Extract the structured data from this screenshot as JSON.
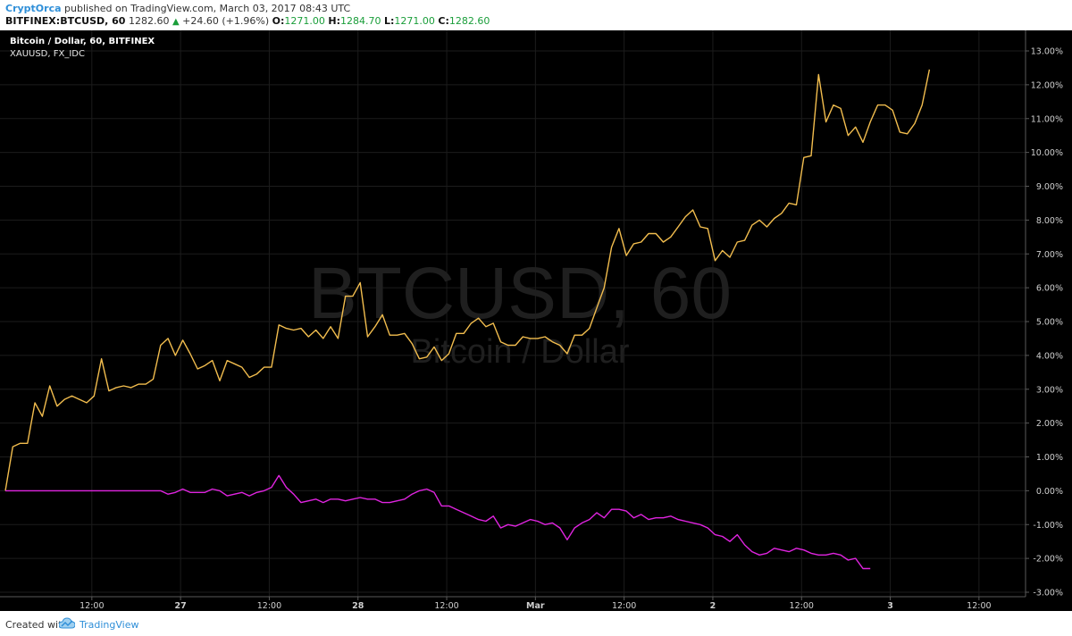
{
  "header": {
    "author": "CryptOrca",
    "published_text": "published on TradingView.com, March 03, 2017 08:43 UTC",
    "symbol": "BITFINEX:BTCUSD, 60",
    "last": "1282.60",
    "change": "+24.60 (+1.96%)",
    "open_label": "O:",
    "open": "1271.00",
    "high_label": "H:",
    "high": "1284.70",
    "low_label": "L:",
    "low": "1271.00",
    "close_label": "C:",
    "close": "1282.60"
  },
  "legend": {
    "main_series": "Bitcoin / Dollar, 60, BITFINEX",
    "compare_series": "XAUUSD, FX_IDC"
  },
  "watermark": {
    "symbol": "BTCUSD, 60",
    "description": "Bitcoin / Dollar"
  },
  "footer": {
    "created_with": "Created with",
    "brand": "TradingView"
  },
  "colors": {
    "background": "#000000",
    "btc_line": "#f2bd4e",
    "xau_line": "#e024e0",
    "axis_text": "#d0d0d0",
    "brand": "#2f8fd8"
  },
  "chart_data": {
    "type": "line",
    "yunit": "%",
    "ylim": [
      -3.2,
      13.3
    ],
    "y_ticks": [
      13,
      12,
      11,
      10,
      9,
      8,
      7,
      6,
      5,
      4,
      3,
      2,
      1,
      0,
      -1,
      -2,
      -3
    ],
    "y_tick_labels": [
      "13.00%",
      "12.00%",
      "11.00%",
      "10.00%",
      "9.00%",
      "8.00%",
      "7.00%",
      "6.00%",
      "5.00%",
      "4.00%",
      "3.00%",
      "2.00%",
      "1.00%",
      "0.00%",
      "-1.00%",
      "-2.00%",
      "-3.00%"
    ],
    "x_ticks": [
      {
        "label": "12:00",
        "bar": 19.5
      },
      {
        "label": "27",
        "bar": 39.5
      },
      {
        "label": "12:00",
        "bar": 59.5
      },
      {
        "label": "28",
        "bar": 79.5
      },
      {
        "label": "12:00",
        "bar": 99.5
      },
      {
        "label": "Mar",
        "bar": 119.5
      },
      {
        "label": "12:00",
        "bar": 139.5
      },
      {
        "label": "2",
        "bar": 159.5
      },
      {
        "label": "12:00",
        "bar": 179.5
      },
      {
        "label": "3",
        "bar": 199.5
      },
      {
        "label": "12:00",
        "bar": 219.5
      }
    ],
    "x_range": [
      0,
      230
    ],
    "grid": true,
    "series": [
      {
        "values": [
          0.0,
          1.3,
          1.4,
          1.4,
          2.6,
          2.2,
          3.1,
          2.5,
          2.7,
          2.8,
          2.7,
          2.6,
          2.8,
          3.9,
          2.95,
          3.05,
          3.1,
          3.05,
          3.15,
          3.15,
          3.3,
          4.3,
          4.5,
          4.0,
          4.45,
          4.05,
          3.6,
          3.7,
          3.85,
          3.25,
          3.85,
          3.75,
          3.65,
          3.35,
          3.45,
          3.65,
          3.65,
          4.9,
          4.8,
          4.75,
          4.8,
          4.55,
          4.75,
          4.5,
          4.85,
          4.5,
          5.75,
          5.75,
          6.15,
          4.55,
          4.85,
          5.2,
          4.6,
          4.6,
          4.65,
          4.35,
          3.9,
          3.95,
          4.25,
          3.85,
          4.05,
          4.65,
          4.65,
          4.95,
          5.1,
          4.85,
          4.95,
          4.4,
          4.3,
          4.3,
          4.55,
          4.5,
          4.5,
          4.55,
          4.4,
          4.3,
          4.05,
          4.6,
          4.6,
          4.8,
          5.4,
          6.0,
          7.2,
          7.75,
          6.95,
          7.3,
          7.35,
          7.6,
          7.6,
          7.35,
          7.5,
          7.8,
          8.1,
          8.3,
          7.8,
          7.75,
          6.8,
          7.1,
          6.9,
          7.35,
          7.4,
          7.85,
          8.0,
          7.8,
          8.05,
          8.2,
          8.5,
          8.45,
          9.85,
          9.9,
          12.3,
          10.9,
          11.4,
          11.3,
          10.5,
          10.75,
          10.3,
          10.9,
          11.4,
          11.4,
          11.25,
          10.6,
          10.55,
          10.85,
          11.4,
          12.45
        ],
        "step": 1.6667
      },
      {
        "values": [
          0.0,
          0.0,
          0.0,
          0.0,
          0.0,
          0.0,
          0.0,
          0.0,
          0.0,
          0.0,
          0.0,
          0.0,
          0.0,
          0.0,
          0.0,
          0.0,
          0.0,
          0.0,
          0.0,
          0.0,
          0.0,
          0.0,
          -0.1,
          -0.05,
          0.05,
          -0.05,
          -0.05,
          -0.05,
          0.05,
          0.0,
          -0.15,
          -0.1,
          -0.05,
          -0.15,
          -0.05,
          0.0,
          0.1,
          0.45,
          0.1,
          -0.1,
          -0.35,
          -0.3,
          -0.25,
          -0.35,
          -0.25,
          -0.25,
          -0.3,
          -0.25,
          -0.2,
          -0.25,
          -0.25,
          -0.35,
          -0.35,
          -0.3,
          -0.25,
          -0.1,
          0.0,
          0.05,
          -0.05,
          -0.45,
          -0.45,
          -0.55,
          -0.65,
          -0.75,
          -0.85,
          -0.9,
          -0.75,
          -1.1,
          -1.0,
          -1.05,
          -0.95,
          -0.85,
          -0.9,
          -1.0,
          -0.95,
          -1.1,
          -1.45,
          -1.1,
          -0.95,
          -0.85,
          -0.65,
          -0.8,
          -0.55,
          -0.55,
          -0.6,
          -0.8,
          -0.7,
          -0.85,
          -0.8,
          -0.8,
          -0.75,
          -0.85,
          -0.9,
          -0.95,
          -1.0,
          -1.1,
          -1.3,
          -1.35,
          -1.5,
          -1.3,
          -1.6,
          -1.8,
          -1.9,
          -1.85,
          -1.7,
          -1.75,
          -1.8,
          -1.7,
          -1.75,
          -1.85,
          -1.9,
          -1.9,
          -1.85,
          -1.9,
          -2.05,
          -2.0,
          -2.3,
          -2.3
        ],
        "step": 1.6667
      }
    ]
  }
}
